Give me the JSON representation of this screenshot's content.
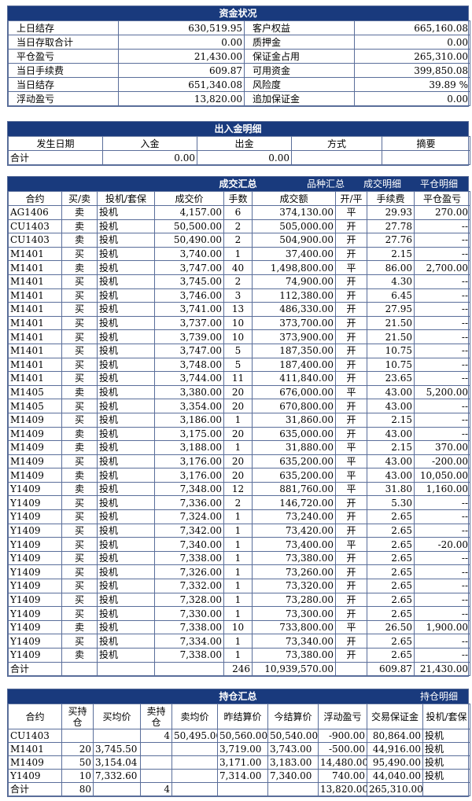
{
  "funds": {
    "title": "资金状况",
    "rows": [
      {
        "l1": "上日结存",
        "v1": "630,519.95",
        "l2": "客户权益",
        "v2": "665,160.08"
      },
      {
        "l1": "当日存取合计",
        "v1": "0.00",
        "l2": "质押金",
        "v2": "0.00"
      },
      {
        "l1": "平仓盈亏",
        "v1": "21,430.00",
        "l2": "保证金占用",
        "v2": "265,310.00"
      },
      {
        "l1": "当日手续费",
        "v1": "609.87",
        "l2": "可用资金",
        "v2": "399,850.08"
      },
      {
        "l1": "当日结存",
        "v1": "651,340.08",
        "l2": "风险度",
        "v2": "39.89 %"
      },
      {
        "l1": "浮动盈亏",
        "v1": "13,820.00",
        "l2": "追加保证金",
        "v2": "0.00"
      }
    ]
  },
  "io": {
    "title": "出入金明细",
    "headers": [
      "发生日期",
      "入金",
      "出金",
      "方式",
      "摘要"
    ],
    "total": {
      "label": "合计",
      "in": "0.00",
      "out": "0.00"
    }
  },
  "trades": {
    "title": "成交汇总",
    "links": [
      "品种汇总",
      "成交明细",
      "平仓明细"
    ],
    "headers": [
      "合约",
      "买/卖",
      "投机/套保",
      "成交价",
      "手数",
      "成交额",
      "开/平",
      "手续费",
      "平仓盈亏"
    ],
    "rows": [
      [
        "AG1406",
        "卖",
        "投机",
        "4,157.00",
        "6",
        "374,130.00",
        "平",
        "29.93",
        "270.00"
      ],
      [
        "CU1403",
        "卖",
        "投机",
        "50,500.00",
        "2",
        "505,000.00",
        "开",
        "27.78",
        "--"
      ],
      [
        "CU1403",
        "卖",
        "投机",
        "50,490.00",
        "2",
        "504,900.00",
        "开",
        "27.76",
        "--"
      ],
      [
        "M1401",
        "买",
        "投机",
        "3,740.00",
        "1",
        "37,400.00",
        "开",
        "2.15",
        "--"
      ],
      [
        "M1401",
        "卖",
        "投机",
        "3,747.00",
        "40",
        "1,498,800.00",
        "平",
        "86.00",
        "2,700.00"
      ],
      [
        "M1401",
        "买",
        "投机",
        "3,745.00",
        "2",
        "74,900.00",
        "开",
        "4.30",
        "--"
      ],
      [
        "M1401",
        "买",
        "投机",
        "3,746.00",
        "3",
        "112,380.00",
        "开",
        "6.45",
        "--"
      ],
      [
        "M1401",
        "买",
        "投机",
        "3,741.00",
        "13",
        "486,330.00",
        "开",
        "27.95",
        "--"
      ],
      [
        "M1401",
        "买",
        "投机",
        "3,737.00",
        "10",
        "373,700.00",
        "开",
        "21.50",
        "--"
      ],
      [
        "M1401",
        "买",
        "投机",
        "3,739.00",
        "10",
        "373,900.00",
        "开",
        "21.50",
        "--"
      ],
      [
        "M1401",
        "买",
        "投机",
        "3,747.00",
        "5",
        "187,350.00",
        "开",
        "10.75",
        "--"
      ],
      [
        "M1401",
        "买",
        "投机",
        "3,748.00",
        "5",
        "187,400.00",
        "开",
        "10.75",
        "--"
      ],
      [
        "M1401",
        "买",
        "投机",
        "3,744.00",
        "11",
        "411,840.00",
        "开",
        "23.65",
        "--"
      ],
      [
        "M1405",
        "卖",
        "投机",
        "3,380.00",
        "20",
        "676,000.00",
        "平",
        "43.00",
        "5,200.00"
      ],
      [
        "M1405",
        "买",
        "投机",
        "3,354.00",
        "20",
        "670,800.00",
        "开",
        "43.00",
        "--"
      ],
      [
        "M1409",
        "买",
        "投机",
        "3,186.00",
        "1",
        "31,860.00",
        "开",
        "2.15",
        "--"
      ],
      [
        "M1409",
        "卖",
        "投机",
        "3,175.00",
        "20",
        "635,000.00",
        "开",
        "43.00",
        "--"
      ],
      [
        "M1409",
        "卖",
        "投机",
        "3,188.00",
        "1",
        "31,880.00",
        "平",
        "2.15",
        "370.00"
      ],
      [
        "M1409",
        "买",
        "投机",
        "3,176.00",
        "20",
        "635,200.00",
        "平",
        "43.00",
        "-200.00"
      ],
      [
        "M1409",
        "卖",
        "投机",
        "3,176.00",
        "20",
        "635,200.00",
        "平",
        "43.00",
        "10,050.00"
      ],
      [
        "Y1409",
        "卖",
        "投机",
        "7,348.00",
        "12",
        "881,760.00",
        "平",
        "31.80",
        "1,160.00"
      ],
      [
        "Y1409",
        "买",
        "投机",
        "7,336.00",
        "2",
        "146,720.00",
        "开",
        "5.30",
        "--"
      ],
      [
        "Y1409",
        "买",
        "投机",
        "7,324.00",
        "1",
        "73,240.00",
        "开",
        "2.65",
        "--"
      ],
      [
        "Y1409",
        "买",
        "投机",
        "7,342.00",
        "1",
        "73,420.00",
        "开",
        "2.65",
        "--"
      ],
      [
        "Y1409",
        "买",
        "投机",
        "7,340.00",
        "1",
        "73,400.00",
        "平",
        "2.65",
        "-20.00"
      ],
      [
        "Y1409",
        "买",
        "投机",
        "7,338.00",
        "1",
        "73,380.00",
        "开",
        "2.65",
        "--"
      ],
      [
        "Y1409",
        "买",
        "投机",
        "7,326.00",
        "1",
        "73,260.00",
        "开",
        "2.65",
        "--"
      ],
      [
        "Y1409",
        "买",
        "投机",
        "7,332.00",
        "1",
        "73,320.00",
        "开",
        "2.65",
        "--"
      ],
      [
        "Y1409",
        "买",
        "投机",
        "7,328.00",
        "1",
        "73,280.00",
        "开",
        "2.65",
        "--"
      ],
      [
        "Y1409",
        "买",
        "投机",
        "7,330.00",
        "1",
        "73,300.00",
        "开",
        "2.65",
        "--"
      ],
      [
        "Y1409",
        "卖",
        "投机",
        "7,338.00",
        "10",
        "733,800.00",
        "平",
        "26.50",
        "1,900.00"
      ],
      [
        "Y1409",
        "买",
        "投机",
        "7,334.00",
        "1",
        "73,340.00",
        "开",
        "2.65",
        "--"
      ],
      [
        "Y1409",
        "卖",
        "投机",
        "7,338.00",
        "1",
        "73,380.00",
        "开",
        "2.65",
        "--"
      ]
    ],
    "total": {
      "label": "合计",
      "lots": "246",
      "amount": "10,939,570.00",
      "fee": "609.87",
      "pnl": "21,430.00"
    }
  },
  "positions": {
    "title": "持仓汇总",
    "link": "持仓明细",
    "headers": [
      "合约",
      "买持仓",
      "买均价",
      "卖持仓",
      "卖均价",
      "昨结算价",
      "今结算价",
      "浮动盈亏",
      "交易保证金",
      "投机/套保"
    ],
    "rows": [
      [
        "CU1403",
        "",
        "",
        "4",
        "50,495.00",
        "50,560.00",
        "50,540.00",
        "-900.00",
        "80,864.00",
        "投机"
      ],
      [
        "M1401",
        "20",
        "3,745.50",
        "",
        "",
        "3,719.00",
        "3,743.00",
        "-500.00",
        "44,916.00",
        "投机"
      ],
      [
        "M1409",
        "50",
        "3,154.04",
        "",
        "",
        "3,171.00",
        "3,183.00",
        "14,480.00",
        "95,490.00",
        "投机"
      ],
      [
        "Y1409",
        "10",
        "7,332.60",
        "",
        "",
        "7,314.00",
        "7,340.00",
        "740.00",
        "44,040.00",
        "投机"
      ]
    ],
    "total": {
      "label": "合计",
      "buy": "80",
      "sell": "4",
      "pnl": "13,820.00",
      "margin": "265,310.00"
    }
  }
}
